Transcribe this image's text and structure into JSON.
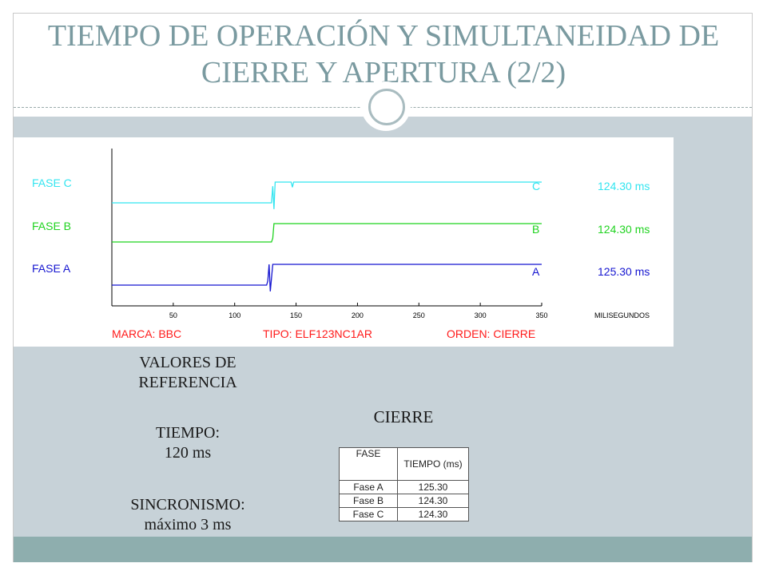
{
  "title": "TIEMPO DE OPERACIÓN Y SIMULTANEIDAD DE CIERRE Y APERTURA (2/2)",
  "chart_data": {
    "type": "line",
    "x_unit_label": "MILISEGUNDOS",
    "xlim": [
      0,
      350
    ],
    "xticks": [
      50,
      100,
      150,
      200,
      250,
      300,
      350
    ],
    "series": [
      {
        "name": "FASE C",
        "end_letter": "C",
        "time_label": "124.30 ms",
        "color": "#33e5f0",
        "step_ms": 133,
        "points": [
          [
            0,
            0
          ],
          [
            130,
            0
          ],
          [
            131,
            0.8
          ],
          [
            132,
            -0.3
          ],
          [
            133,
            1
          ],
          [
            146,
            1
          ],
          [
            147,
            0.75
          ],
          [
            148,
            1
          ],
          [
            350,
            1
          ]
        ]
      },
      {
        "name": "FASE B",
        "end_letter": "B",
        "time_label": "124.30 ms",
        "color": "#1fd31f",
        "step_ms": 132,
        "points": [
          [
            0,
            0
          ],
          [
            130,
            0
          ],
          [
            131,
            0.2
          ],
          [
            132,
            1
          ],
          [
            350,
            1
          ]
        ]
      },
      {
        "name": "FASE A",
        "end_letter": "A",
        "time_label": "125.30 ms",
        "color": "#1515d0",
        "step_ms": 131,
        "points": [
          [
            0,
            0
          ],
          [
            126,
            0
          ],
          [
            127,
            0.2
          ],
          [
            128,
            1
          ],
          [
            129,
            -0.3
          ],
          [
            131,
            1
          ],
          [
            350,
            1
          ]
        ]
      }
    ],
    "footer_labels": [
      "MARCA: BBC",
      "TIPO: ELF123NC1AR",
      "ORDEN: CIERRE"
    ],
    "footer_color": "#ff1a1a"
  },
  "reference": {
    "heading": [
      "VALORES DE",
      "REFERENCIA"
    ],
    "time_label": "TIEMPO:",
    "time_value": "120 ms",
    "sync_label": "SINCRONISMO:",
    "sync_value": "máximo 3 ms"
  },
  "table": {
    "caption": "CIERRE",
    "headers": [
      "FASE",
      "TIEMPO (ms)"
    ],
    "rows": [
      [
        "Fase A",
        "125.30"
      ],
      [
        "Fase B",
        "124.30"
      ],
      [
        "Fase C",
        "124.30"
      ]
    ]
  }
}
